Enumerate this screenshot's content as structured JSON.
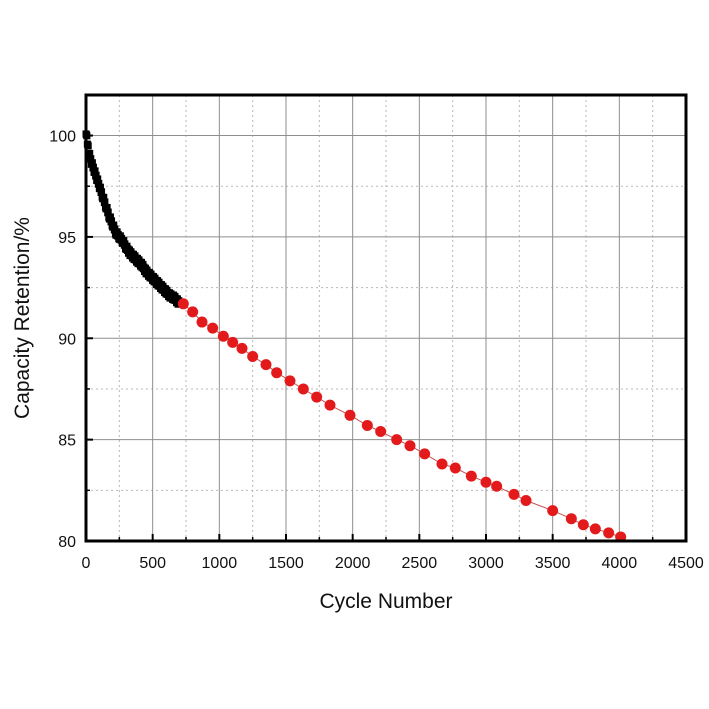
{
  "chart_data": {
    "type": "scatter",
    "xlabel": "Cycle Number",
    "ylabel": "Capacity Retention/%",
    "xlim": [
      0,
      4500
    ],
    "ylim": [
      80,
      102
    ],
    "xticks": [
      0,
      500,
      1000,
      1500,
      2000,
      2500,
      3000,
      3500,
      4000,
      4500
    ],
    "yticks": [
      80,
      85,
      90,
      95,
      100
    ],
    "xtick_labels": [
      "0",
      "500",
      "1000",
      "1500",
      "2000",
      "2500",
      "3000",
      "3500",
      "4000",
      "4500"
    ],
    "ytick_labels": [
      "80",
      "85",
      "90",
      "95",
      "100"
    ],
    "grid": true,
    "legend": "none",
    "series": [
      {
        "marker": "dense black squares",
        "color": "#000000",
        "x": [
          0,
          10,
          20,
          40,
          60,
          80,
          100,
          125,
          150,
          175,
          200,
          225,
          250,
          275,
          300,
          330,
          360,
          390,
          420,
          450,
          480,
          510,
          540,
          570,
          600,
          630,
          660,
          690,
          700
        ],
        "y": [
          100.2,
          99.7,
          99.2,
          98.7,
          98.3,
          97.9,
          97.5,
          97.0,
          96.5,
          96.0,
          95.6,
          95.2,
          95.0,
          94.8,
          94.5,
          94.2,
          94.0,
          93.8,
          93.6,
          93.3,
          93.1,
          92.9,
          92.7,
          92.5,
          92.3,
          92.1,
          92.0,
          91.8,
          91.7
        ]
      },
      {
        "marker": "red circles joined by a thin line",
        "color": "#e31a1c",
        "x": [
          730,
          800,
          870,
          950,
          1030,
          1100,
          1170,
          1250,
          1350,
          1430,
          1530,
          1630,
          1730,
          1830,
          1980,
          2110,
          2210,
          2330,
          2430,
          2540,
          2670,
          2770,
          2890,
          3000,
          3080,
          3210,
          3300,
          3500,
          3640,
          3730,
          3820,
          3920,
          4010
        ],
        "y": [
          91.7,
          91.3,
          90.8,
          90.5,
          90.1,
          89.8,
          89.5,
          89.1,
          88.7,
          88.3,
          87.9,
          87.5,
          87.1,
          86.7,
          86.2,
          85.7,
          85.4,
          85.0,
          84.7,
          84.3,
          83.8,
          83.6,
          83.2,
          82.9,
          82.7,
          82.3,
          82.0,
          81.5,
          81.1,
          80.8,
          80.6,
          80.4,
          80.2
        ]
      }
    ]
  }
}
